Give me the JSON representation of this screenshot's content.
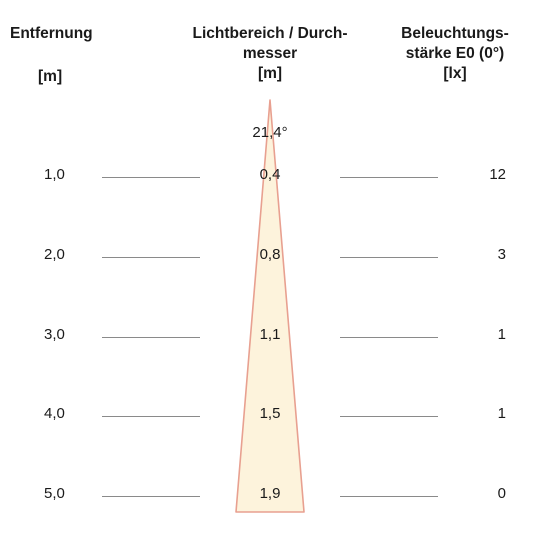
{
  "headers": {
    "distance": "Entfernung",
    "distance_unit": "[m]",
    "diameter_line1": "Lichtbereich / Durch-",
    "diameter_line2": "messer",
    "diameter_unit": "[m]",
    "illuminance_line1": "Beleuchtungs-",
    "illuminance_line2": "stärke E0 (0°)",
    "illuminance_unit": "[lx]"
  },
  "beam_angle": "21,4°",
  "rows": [
    {
      "distance": "1,0",
      "diameter": "0,4",
      "illuminance": "12"
    },
    {
      "distance": "2,0",
      "diameter": "0,8",
      "illuminance": "3"
    },
    {
      "distance": "3,0",
      "diameter": "1,1",
      "illuminance": "1"
    },
    {
      "distance": "4,0",
      "diameter": "1,5",
      "illuminance": "1"
    },
    {
      "distance": "5,0",
      "diameter": "1,9",
      "illuminance": "0"
    }
  ],
  "colors": {
    "cone_fill": "#fdf3dc",
    "cone_stroke": "#e8a090",
    "rule_line": "#8a8a8a"
  }
}
